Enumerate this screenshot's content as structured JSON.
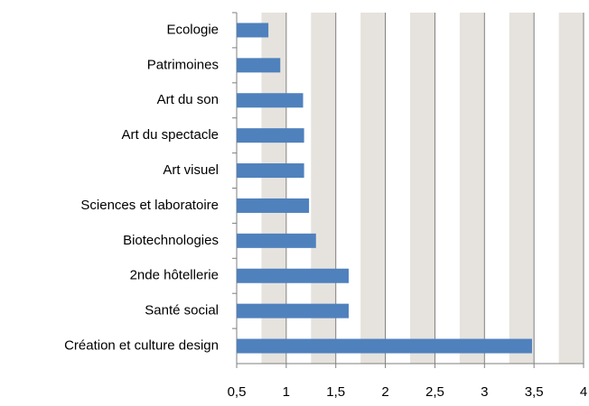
{
  "chart_data": {
    "type": "bar",
    "orientation": "horizontal",
    "categories": [
      "Ecologie",
      "Patrimoines",
      "Art du son",
      "Art du spectacle",
      "Art visuel",
      "Sciences et laboratoire",
      "Biotechnologies",
      "2nde hôtellerie",
      "Santé social",
      "Création et culture design"
    ],
    "values": [
      0.82,
      0.94,
      1.17,
      1.18,
      1.18,
      1.23,
      1.3,
      1.63,
      1.63,
      3.48
    ],
    "color": "#4f81bd",
    "xlim": [
      0.5,
      4
    ],
    "xticks": [
      {
        "value": 0.5,
        "label": "0,5"
      },
      1,
      {
        "value": 1.5,
        "label": "1,5"
      },
      2,
      {
        "value": 2.5,
        "label": "2,5"
      },
      3,
      {
        "value": 3.5,
        "label": "3,5"
      },
      4
    ],
    "grid": true
  }
}
